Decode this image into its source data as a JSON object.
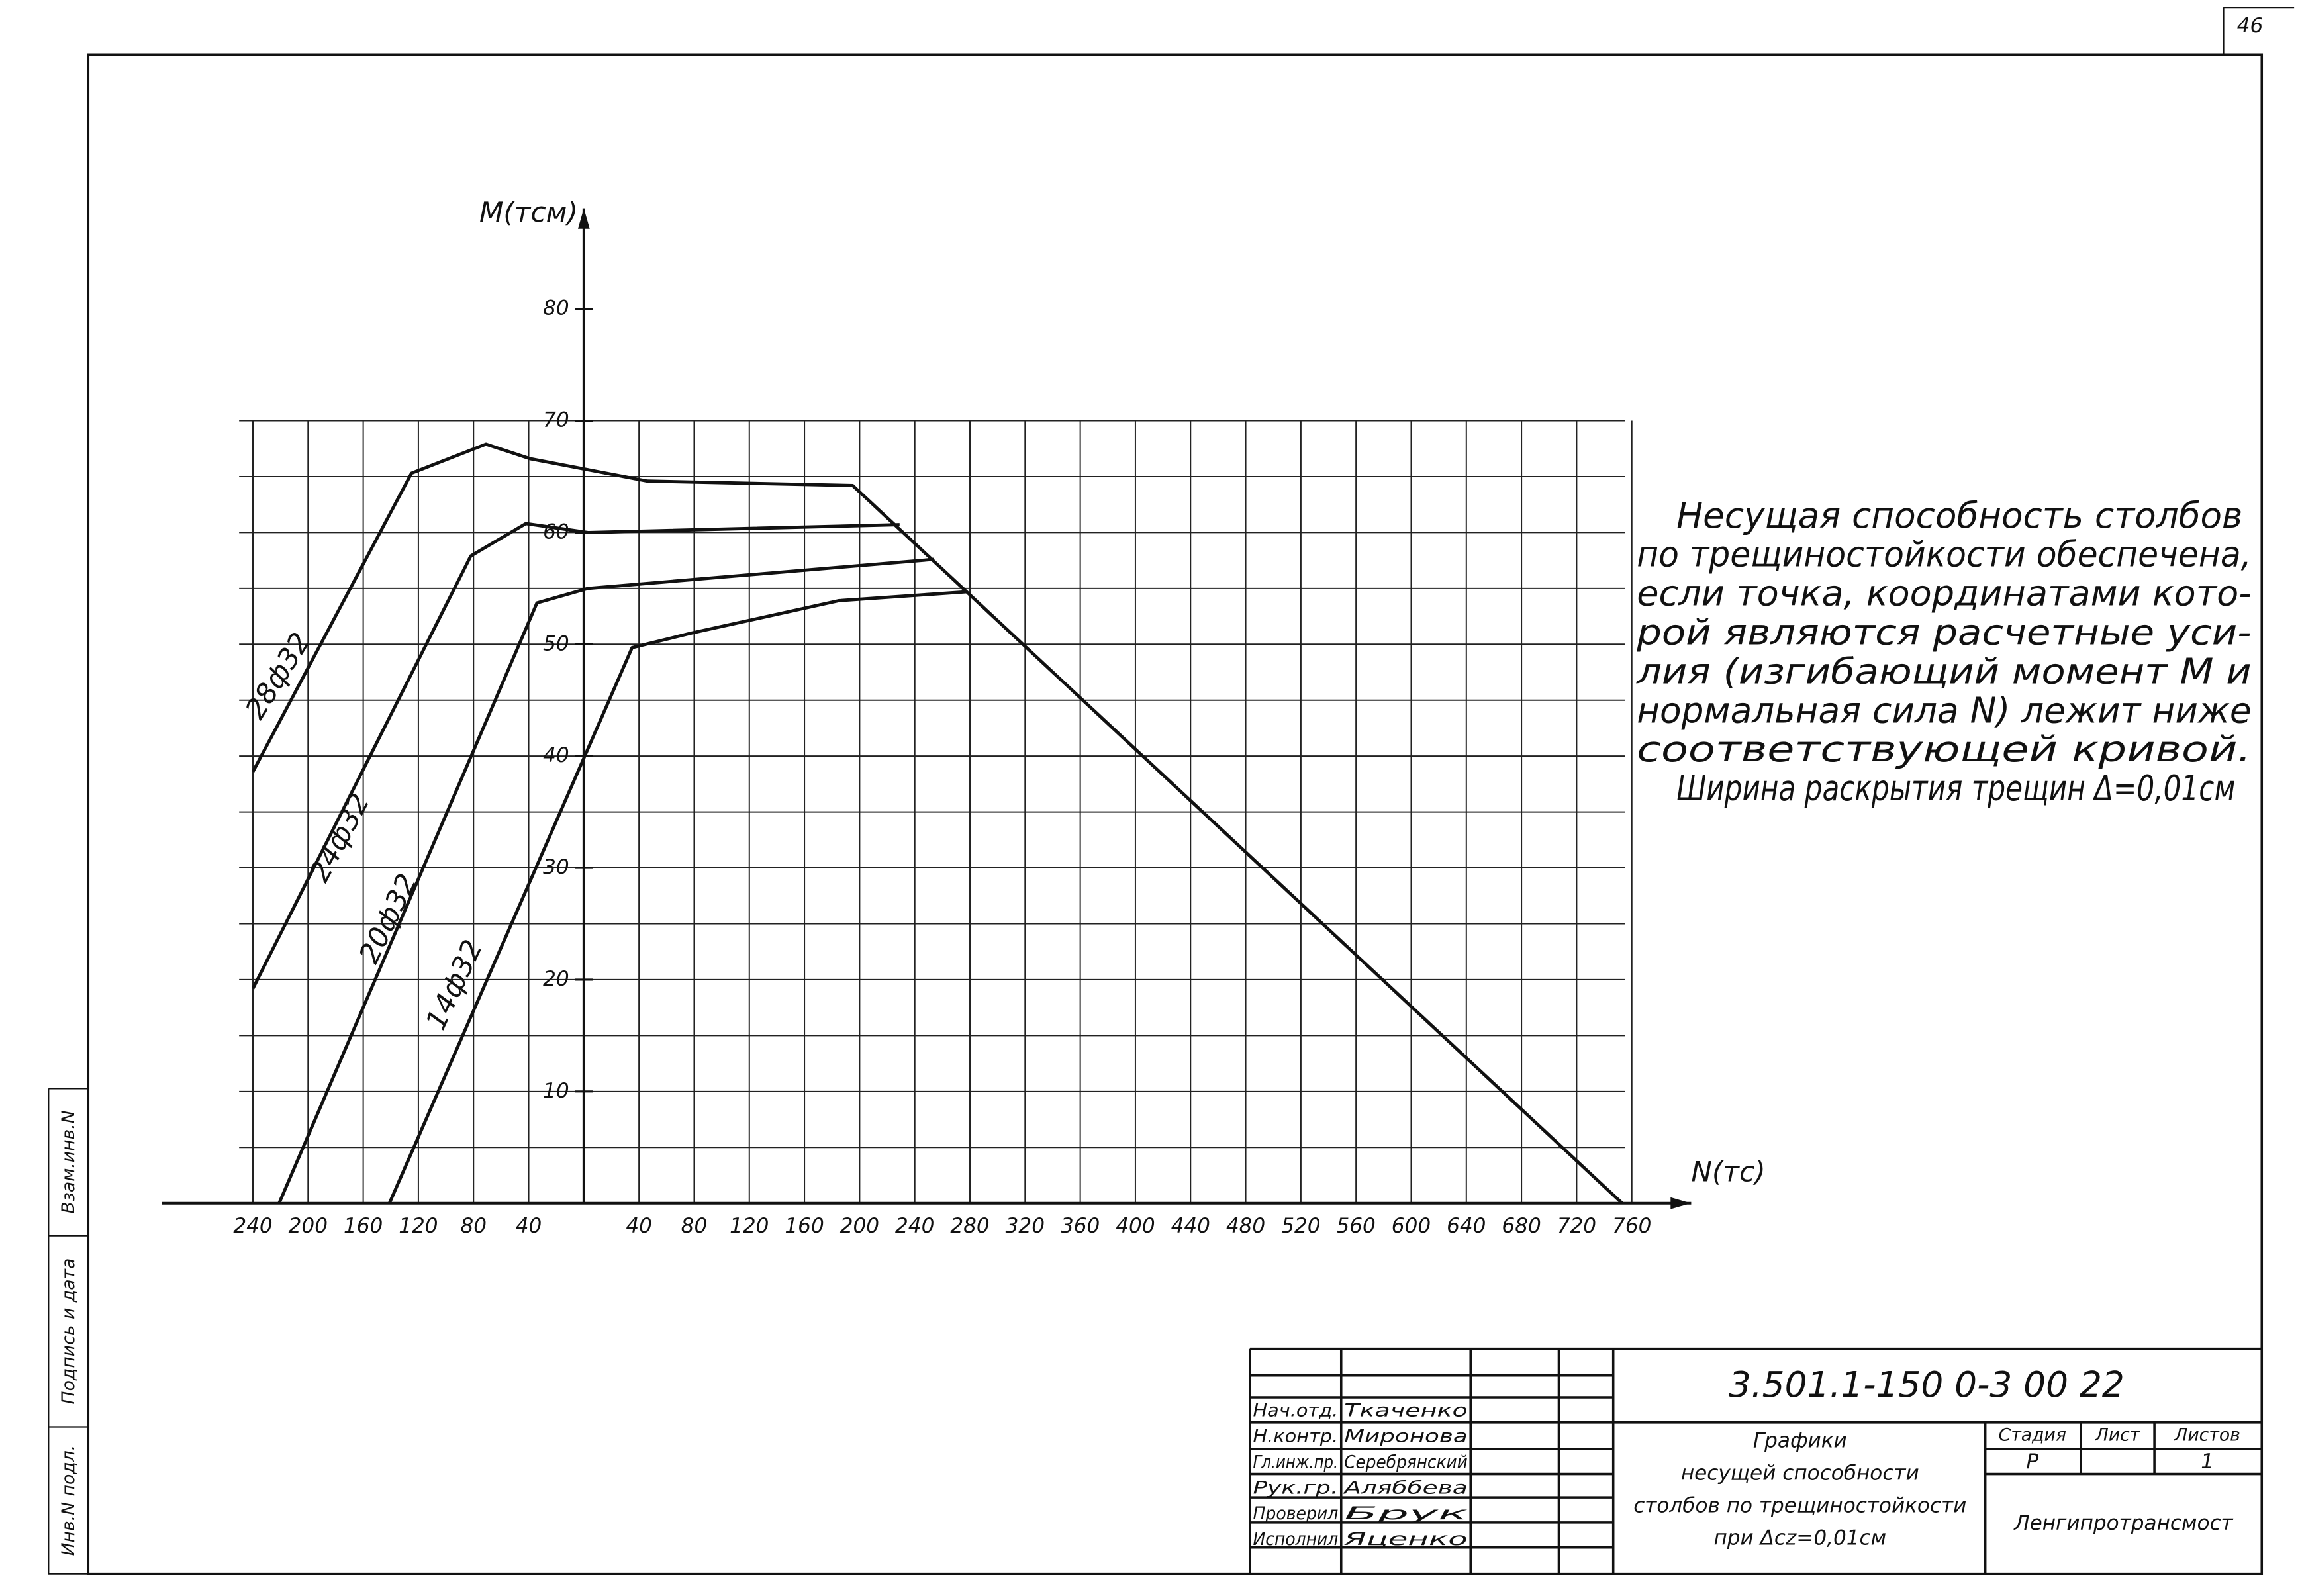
{
  "sheet_number": "46",
  "chart_data": {
    "type": "line",
    "x_label": "N(тс)",
    "y_label": "M(тсм)",
    "xlim": [
      -250,
      770
    ],
    "ylim": [
      0,
      89
    ],
    "grid": true,
    "grid_top": 70,
    "xticks": [
      {
        "value": -240,
        "label": "240"
      },
      {
        "value": -200,
        "label": "200"
      },
      {
        "value": -160,
        "label": "160"
      },
      {
        "value": -120,
        "label": "120"
      },
      {
        "value": -80,
        "label": "80"
      },
      {
        "value": -40,
        "label": "40"
      },
      40,
      80,
      120,
      160,
      200,
      240,
      280,
      320,
      360,
      400,
      440,
      480,
      520,
      560,
      600,
      640,
      680,
      720,
      760
    ],
    "yticks": [
      10,
      20,
      30,
      40,
      50,
      60,
      70,
      80
    ],
    "y_minor_ticks": [
      5,
      15,
      25,
      35,
      45,
      55,
      65
    ],
    "color": "#111",
    "series": [
      {
        "name": "28ф32",
        "x": [
          -240,
          -125,
          -71,
          -39,
          46,
          195,
          753
        ],
        "values": [
          38.6,
          65.3,
          67.9,
          66.6,
          64.6,
          64.2,
          0
        ]
      },
      {
        "name": "24ф32",
        "x": [
          -240,
          -82,
          -42,
          3,
          229
        ],
        "values": [
          19.2,
          57.9,
          60.8,
          60,
          60.7
        ]
      },
      {
        "name": "20ф32",
        "x": [
          -221,
          -34,
          3,
          254
        ],
        "values": [
          0,
          53.7,
          55,
          57.6
        ]
      },
      {
        "name": "14ф32",
        "x": [
          -141,
          35,
          78,
          185,
          278
        ],
        "values": [
          0,
          49.7,
          51,
          53.9,
          54.7
        ]
      }
    ]
  },
  "note": [
    "Несущая способность столбов",
    "по трещиностойкости обеспечена,",
    "если точка, координатами кото-",
    "рой являются расчетные уси-",
    "лия (изгибающий момент M и",
    "нормальная сила N) лежит ниже",
    "соответствующей кривой.",
    "Ширина раскрытия трещин Δ=0,01см"
  ],
  "margin": [
    "Инв.N подл.",
    "Подпись и дата",
    "Взам.инв.N"
  ],
  "title_block": {
    "code": "3.501.1-150 0-3 00 22",
    "staff": [
      [
        "Нач.отд.",
        "Ткаченко"
      ],
      [
        "Н.контр.",
        "Миронова"
      ],
      [
        "Гл.инж.пр.",
        "Серебрянский"
      ],
      [
        "Рук.гр.",
        "Аляббева"
      ],
      [
        "Проверил",
        "Брук"
      ],
      [
        "Исполнил",
        "Яценко"
      ]
    ],
    "title": [
      "Графики",
      "несущей способности",
      "столбов по трещиностойкости",
      "при Δcz=0,01см"
    ],
    "headers": [
      "Стадия",
      "Лист",
      "Листов"
    ],
    "stage": "Р",
    "sheets": "1",
    "org": "Ленгипротрансмост"
  }
}
